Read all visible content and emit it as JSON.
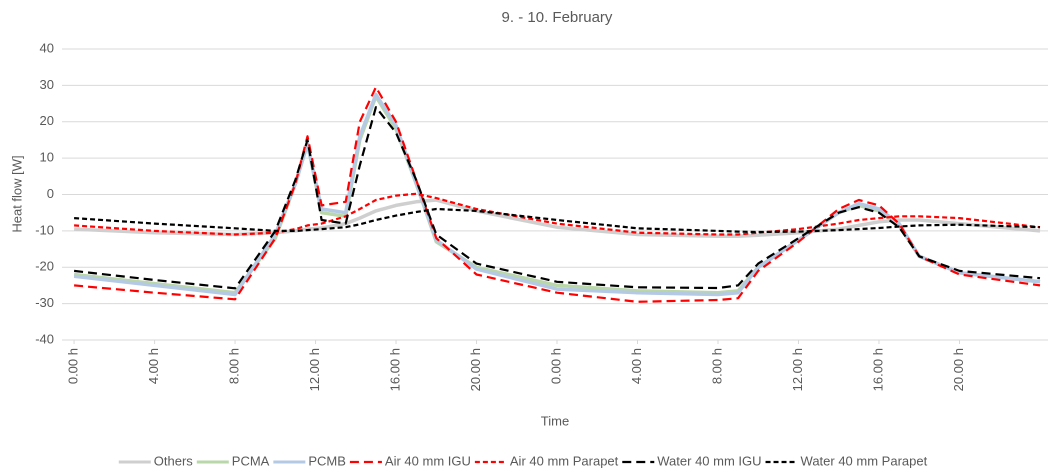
{
  "chart_data": {
    "type": "line",
    "title": "9. - 10. February",
    "x_label": "Time",
    "y_label": "Heat flow [W]",
    "x": [
      0,
      4,
      8,
      10,
      11,
      11.6,
      12.3,
      13.5,
      14.2,
      15,
      16,
      17,
      18,
      20,
      24,
      28,
      32,
      33,
      34,
      36,
      38,
      39,
      40,
      41,
      42,
      44,
      48
    ],
    "xlim": [
      -0.6,
      48.4
    ],
    "xticks": [
      {
        "value": 0,
        "label": "0.00 h"
      },
      {
        "value": 4,
        "label": "4.00 h"
      },
      {
        "value": 8,
        "label": "8.00 h"
      },
      {
        "value": 12,
        "label": "12.00 h"
      },
      {
        "value": 16,
        "label": "16.00 h"
      },
      {
        "value": 20,
        "label": "20.00 h"
      },
      {
        "value": 24,
        "label": "0.00 h"
      },
      {
        "value": 28,
        "label": "4.00 h"
      },
      {
        "value": 32,
        "label": "8.00 h"
      },
      {
        "value": 36,
        "label": "12.00 h"
      },
      {
        "value": 40,
        "label": "16.00 h"
      },
      {
        "value": 44,
        "label": "20.00 h"
      }
    ],
    "ylim": [
      -40,
      40
    ],
    "yticks": [
      -40,
      -30,
      -20,
      -10,
      0,
      10,
      20,
      30,
      40
    ],
    "grid": true,
    "legend": "bottom",
    "series": [
      {
        "name": "Others",
        "color": "#cfcfcf",
        "line_style": "solid",
        "values": [
          -9.5,
          -10.5,
          -11,
          -10.5,
          -10,
          -9.5,
          -9.2,
          -8,
          -6.5,
          -4.5,
          -3,
          -2,
          -1.5,
          -4.5,
          -9,
          -11,
          -11.5,
          -11.5,
          -11.2,
          -10.5,
          -9.5,
          -8.5,
          -7.5,
          -7,
          -7,
          -8,
          -10
        ]
      },
      {
        "name": "PCMA",
        "color": "#b9d7a8",
        "line_style": "solid",
        "values": [
          -22,
          -24.5,
          -27,
          -12,
          3,
          14,
          -5,
          -6,
          15,
          27,
          18,
          3,
          -13,
          -20,
          -25,
          -26.5,
          -27,
          -26.5,
          -20,
          -12.5,
          -5,
          -3,
          -4.5,
          -8.5,
          -17,
          -21.5,
          -24
        ]
      },
      {
        "name": "PCMB",
        "color": "#b4c9e4",
        "line_style": "solid",
        "values": [
          -22.5,
          -25,
          -27.5,
          -11,
          3,
          14,
          -4,
          -5,
          16,
          27.5,
          19,
          3,
          -12.5,
          -20.5,
          -26,
          -27,
          -27.5,
          -27,
          -20,
          -12.5,
          -5,
          -2.5,
          -4,
          -8,
          -17,
          -21.5,
          -24
        ]
      },
      {
        "name": "Air 40 mm IGU",
        "color": "#ff0000",
        "line_style": "long-dash",
        "values": [
          -25,
          -27,
          -28.8,
          -12,
          3,
          16,
          -3,
          -2,
          20,
          29.5,
          20,
          4,
          -12,
          -22,
          -27,
          -29.5,
          -29,
          -28.5,
          -21,
          -13,
          -4,
          -1.5,
          -3,
          -8,
          -17,
          -22,
          -25
        ]
      },
      {
        "name": "Air 40 mm Parapet",
        "color": "#ff0000",
        "line_style": "short-dash",
        "values": [
          -8.5,
          -10,
          -11,
          -10.5,
          -9.5,
          -8.5,
          -8,
          -6,
          -4,
          -1.5,
          -0.3,
          0.2,
          -1,
          -4,
          -8,
          -10.5,
          -11,
          -11,
          -10.5,
          -9.5,
          -8,
          -7,
          -6.5,
          -6,
          -6,
          -6.5,
          -9
        ]
      },
      {
        "name": "Water 40 mm IGU",
        "color": "#000000",
        "line_style": "long-dash",
        "values": [
          -21,
          -23.5,
          -25.8,
          -10,
          4,
          15,
          -7,
          -8,
          8,
          24,
          17,
          4,
          -11,
          -19,
          -24,
          -25.5,
          -25.7,
          -25,
          -19,
          -12,
          -5,
          -3.5,
          -5,
          -9,
          -17,
          -21,
          -23
        ]
      },
      {
        "name": "Water 40 mm Parapet",
        "color": "#000000",
        "line_style": "short-dash",
        "values": [
          -6.5,
          -8,
          -9.3,
          -10,
          -10,
          -9.8,
          -9.5,
          -9,
          -8.2,
          -7,
          -5.8,
          -4.8,
          -4,
          -4.5,
          -7,
          -9.3,
          -10,
          -10.2,
          -10.3,
          -10.2,
          -9.8,
          -9.5,
          -9.2,
          -8.8,
          -8.5,
          -8.3,
          -9
        ]
      }
    ]
  }
}
